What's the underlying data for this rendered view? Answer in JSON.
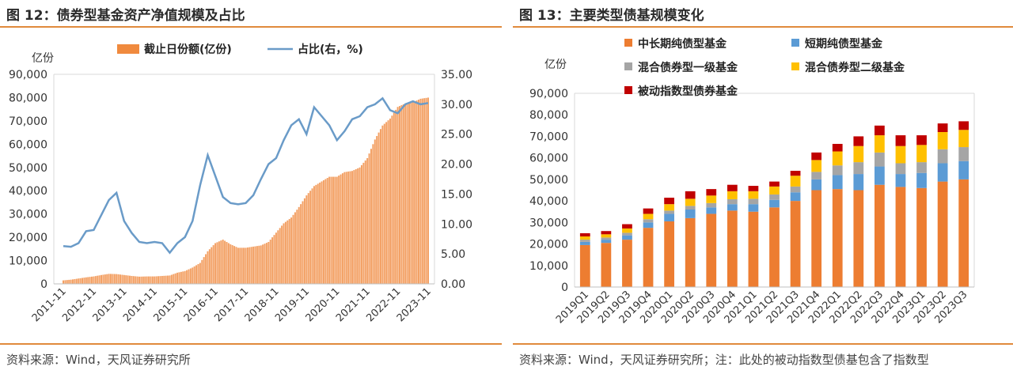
{
  "left": {
    "title": "图 12：债券型基金资产净值规模及占比",
    "source": "资料来源：Wind，天风证券研究所"
  },
  "right": {
    "title": "图 13：主要类型债基规模变化",
    "source": "资料来源：Wind，天风证券研究所；注：此处的被动指数型债基包含了指数型"
  },
  "colors": {
    "accent_rule": "#e08a3c",
    "bar_orange": "#f08a3e",
    "line_blue": "#6a9bc8",
    "medium_long": "#ed7d31",
    "short": "#5b9bd5",
    "mixed1": "#a5a5a5",
    "mixed2": "#ffc000",
    "passive": "#c00000"
  },
  "chart_data": [
    {
      "type": "bar",
      "title": "",
      "ylabel": "亿份",
      "ylim": [
        0,
        90000
      ],
      "yticks": [
        "0",
        "10,000",
        "20,000",
        "30,000",
        "40,000",
        "50,000",
        "60,000",
        "70,000",
        "80,000",
        "90,000"
      ],
      "y2lim": [
        0,
        35
      ],
      "y2ticks": [
        "0.00",
        "5.00",
        "10.00",
        "15.00",
        "20.00",
        "25.00",
        "30.00",
        "35.00"
      ],
      "xticks": [
        "2011-11",
        "2012-11",
        "2013-11",
        "2014-11",
        "2015-11",
        "2016-11",
        "2017-11",
        "2018-11",
        "2019-11",
        "2020-11",
        "2021-11",
        "2022-11",
        "2023-11"
      ],
      "legend": {
        "placement": "top",
        "bar_label": "截止日份额(亿份)",
        "line_label": "占比(右，%)"
      },
      "x": [
        "2011-11",
        "2012-02",
        "2012-05",
        "2012-08",
        "2012-11",
        "2013-02",
        "2013-05",
        "2013-08",
        "2013-11",
        "2014-02",
        "2014-05",
        "2014-08",
        "2014-11",
        "2015-02",
        "2015-05",
        "2015-08",
        "2015-11",
        "2016-02",
        "2016-05",
        "2016-08",
        "2016-11",
        "2017-02",
        "2017-05",
        "2017-08",
        "2017-11",
        "2018-02",
        "2018-05",
        "2018-08",
        "2018-11",
        "2019-02",
        "2019-05",
        "2019-08",
        "2019-11",
        "2020-02",
        "2020-05",
        "2020-08",
        "2020-11",
        "2021-02",
        "2021-05",
        "2021-08",
        "2021-11",
        "2022-02",
        "2022-05",
        "2022-08",
        "2022-11",
        "2023-02",
        "2023-05",
        "2023-08",
        "2023-11"
      ],
      "series": [
        {
          "name": "截止日份额(亿份)",
          "kind": "bar",
          "axis": "left",
          "values": [
            1500,
            1800,
            2300,
            2800,
            3200,
            3800,
            4300,
            4200,
            3800,
            3400,
            3100,
            3200,
            3200,
            3400,
            3600,
            4800,
            5500,
            7000,
            9000,
            14000,
            17500,
            19000,
            17000,
            15500,
            15500,
            16000,
            16500,
            18000,
            22000,
            26000,
            28500,
            33000,
            38000,
            42000,
            44000,
            46000,
            46000,
            48000,
            48500,
            50000,
            54000,
            62000,
            68000,
            71000,
            76000,
            77500,
            78000,
            79500,
            80000
          ]
        },
        {
          "name": "占比(右，%)",
          "kind": "line",
          "axis": "right",
          "values": [
            6.3,
            6.2,
            6.8,
            8.8,
            9.0,
            11.5,
            14.0,
            15.2,
            10.5,
            8.5,
            7.0,
            6.8,
            7.0,
            6.8,
            5.2,
            6.8,
            7.8,
            10.5,
            16.5,
            21.5,
            18.0,
            14.5,
            13.5,
            13.3,
            13.5,
            14.8,
            17.5,
            20.0,
            21.0,
            24.0,
            26.5,
            27.5,
            25.0,
            29.5,
            28.0,
            26.5,
            24.0,
            25.5,
            27.5,
            28.0,
            29.5,
            30.0,
            31.0,
            29.0,
            28.5,
            30.0,
            30.5,
            30.0,
            30.2
          ]
        }
      ]
    },
    {
      "type": "bar",
      "stacked": true,
      "title": "",
      "ylabel": "亿份",
      "ylim": [
        0,
        90000
      ],
      "yticks": [
        "0",
        "10,000",
        "20,000",
        "30,000",
        "40,000",
        "50,000",
        "60,000",
        "70,000",
        "80,000",
        "90,000"
      ],
      "categories": [
        "2019Q1",
        "2019Q2",
        "2019Q3",
        "2019Q4",
        "2020Q1",
        "2020Q2",
        "2020Q3",
        "2020Q4",
        "2021Q1",
        "2021Q2",
        "2021Q3",
        "2021Q4",
        "2022Q1",
        "2022Q2",
        "2022Q3",
        "2022Q4",
        "2023Q1",
        "2023Q2",
        "2023Q3"
      ],
      "legend": {
        "placement": "top-left"
      },
      "series": [
        {
          "name": "中长期纯债型基金",
          "values": [
            19500,
            20500,
            22000,
            27500,
            30500,
            32000,
            34000,
            35500,
            35000,
            37000,
            40000,
            45000,
            45500,
            45000,
            47500,
            46500,
            46000,
            49000,
            50000
          ]
        },
        {
          "name": "短期纯债型基金",
          "values": [
            1500,
            1500,
            2000,
            2500,
            3500,
            4000,
            3000,
            3000,
            3500,
            3500,
            4000,
            5000,
            6500,
            7500,
            8500,
            6000,
            7000,
            8500,
            8500
          ]
        },
        {
          "name": "混合债券型一级基金",
          "values": [
            1000,
            1000,
            1200,
            1500,
            1500,
            1700,
            2000,
            2300,
            2500,
            2500,
            2700,
            3500,
            4500,
            5500,
            6500,
            5000,
            5000,
            6500,
            6500
          ]
        },
        {
          "name": "混合债券型二级基金",
          "values": [
            1500,
            1500,
            2000,
            2500,
            3000,
            3300,
            3500,
            3700,
            3500,
            3700,
            5000,
            5500,
            6500,
            7500,
            8000,
            8000,
            8000,
            8000,
            8000
          ]
        },
        {
          "name": "被动指数型债券基金",
          "values": [
            1500,
            1500,
            2000,
            2500,
            3000,
            3500,
            3000,
            3000,
            2500,
            2300,
            2300,
            3500,
            3500,
            4500,
            4500,
            5000,
            4500,
            4000,
            4000
          ]
        }
      ]
    }
  ]
}
